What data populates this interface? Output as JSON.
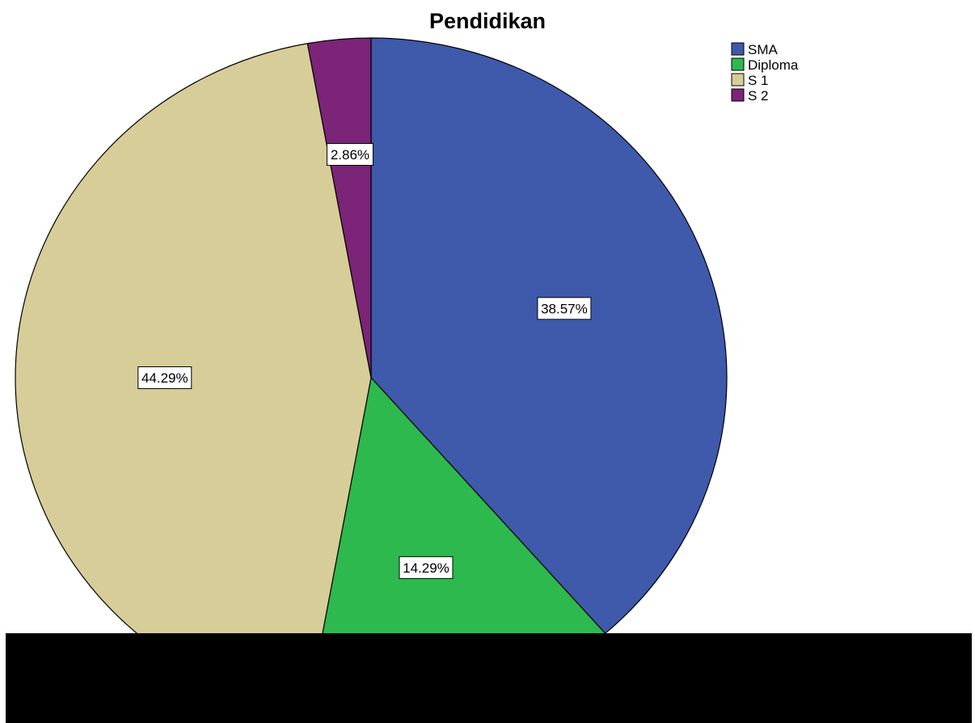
{
  "chart_data": {
    "type": "pie",
    "title": "Pendidikan",
    "categories": [
      "SMA",
      "Diploma",
      "S 1",
      "S 2"
    ],
    "values": [
      38.57,
      14.29,
      44.29,
      2.86
    ],
    "labels": [
      "38.57%",
      "14.29%",
      "44.29%",
      "2.86%"
    ],
    "colors": [
      "#3f59ab",
      "#2db94d",
      "#d6cd98",
      "#7c2478"
    ],
    "legend": {
      "position": "top-right",
      "entries": [
        "SMA",
        "Diploma",
        "S 1",
        "S 2"
      ]
    }
  }
}
